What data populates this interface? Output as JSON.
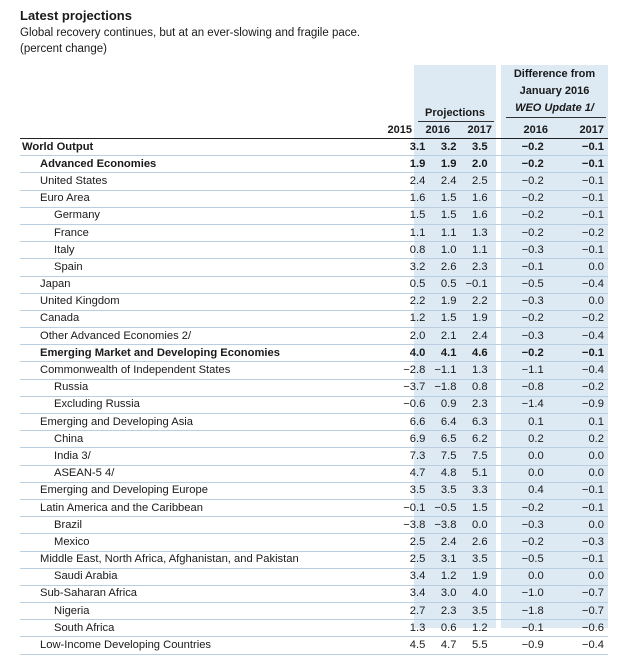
{
  "title": "Latest projections",
  "subtitle": "Global recovery continues, but at an ever-slowing and fragile pace.",
  "unit_note": "(percent change)",
  "header": {
    "difference_line1": "Difference from",
    "difference_line2": "January 2016",
    "difference_line3": "WEO Update 1/",
    "projections": "Projections",
    "years": [
      "2015",
      "2016",
      "2017",
      "2016",
      "2017"
    ]
  },
  "colors": {
    "shade": "#dde9f3",
    "row_rule": "#b9cfe1"
  },
  "rows": [
    {
      "label": "World Output",
      "indent": 0,
      "bold": true,
      "v": [
        "3.1",
        "3.2",
        "3.5",
        "−0.2",
        "−0.1"
      ]
    },
    {
      "label": "Advanced Economies",
      "indent": 1,
      "bold": true,
      "v": [
        "1.9",
        "1.9",
        "2.0",
        "−0.2",
        "−0.1"
      ]
    },
    {
      "label": "United States",
      "indent": 1,
      "bold": false,
      "v": [
        "2.4",
        "2.4",
        "2.5",
        "−0.2",
        "−0.1"
      ]
    },
    {
      "label": "Euro Area",
      "indent": 1,
      "bold": false,
      "v": [
        "1.6",
        "1.5",
        "1.6",
        "−0.2",
        "−0.1"
      ]
    },
    {
      "label": "Germany",
      "indent": 2,
      "bold": false,
      "v": [
        "1.5",
        "1.5",
        "1.6",
        "−0.2",
        "−0.1"
      ]
    },
    {
      "label": "France",
      "indent": 2,
      "bold": false,
      "v": [
        "1.1",
        "1.1",
        "1.3",
        "−0.2",
        "−0.2"
      ]
    },
    {
      "label": "Italy",
      "indent": 2,
      "bold": false,
      "v": [
        "0.8",
        "1.0",
        "1.1",
        "−0.3",
        "−0.1"
      ]
    },
    {
      "label": "Spain",
      "indent": 2,
      "bold": false,
      "v": [
        "3.2",
        "2.6",
        "2.3",
        "−0.1",
        "0.0"
      ]
    },
    {
      "label": "Japan",
      "indent": 1,
      "bold": false,
      "v": [
        "0.5",
        "0.5",
        "−0.1",
        "−0.5",
        "−0.4"
      ]
    },
    {
      "label": "United Kingdom",
      "indent": 1,
      "bold": false,
      "v": [
        "2.2",
        "1.9",
        "2.2",
        "−0.3",
        "0.0"
      ]
    },
    {
      "label": "Canada",
      "indent": 1,
      "bold": false,
      "v": [
        "1.2",
        "1.5",
        "1.9",
        "−0.2",
        "−0.2"
      ]
    },
    {
      "label": "Other Advanced Economies 2/",
      "indent": 1,
      "bold": false,
      "v": [
        "2.0",
        "2.1",
        "2.4",
        "−0.3",
        "−0.4"
      ]
    },
    {
      "label": "Emerging Market and Developing Economies",
      "indent": 1,
      "bold": true,
      "v": [
        "4.0",
        "4.1",
        "4.6",
        "−0.2",
        "−0.1"
      ]
    },
    {
      "label": "Commonwealth of Independent States",
      "indent": 1,
      "bold": false,
      "v": [
        "−2.8",
        "−1.1",
        "1.3",
        "−1.1",
        "−0.4"
      ]
    },
    {
      "label": "Russia",
      "indent": 2,
      "bold": false,
      "v": [
        "−3.7",
        "−1.8",
        "0.8",
        "−0.8",
        "−0.2"
      ]
    },
    {
      "label": "Excluding Russia",
      "indent": 2,
      "bold": false,
      "v": [
        "−0.6",
        "0.9",
        "2.3",
        "−1.4",
        "−0.9"
      ]
    },
    {
      "label": "Emerging and Developing Asia",
      "indent": 1,
      "bold": false,
      "v": [
        "6.6",
        "6.4",
        "6.3",
        "0.1",
        "0.1"
      ]
    },
    {
      "label": "China",
      "indent": 2,
      "bold": false,
      "v": [
        "6.9",
        "6.5",
        "6.2",
        "0.2",
        "0.2"
      ]
    },
    {
      "label": "India 3/",
      "indent": 2,
      "bold": false,
      "v": [
        "7.3",
        "7.5",
        "7.5",
        "0.0",
        "0.0"
      ]
    },
    {
      "label": "ASEAN-5 4/",
      "indent": 2,
      "bold": false,
      "v": [
        "4.7",
        "4.8",
        "5.1",
        "0.0",
        "0.0"
      ]
    },
    {
      "label": "Emerging and Developing Europe",
      "indent": 1,
      "bold": false,
      "v": [
        "3.5",
        "3.5",
        "3.3",
        "0.4",
        "−0.1"
      ]
    },
    {
      "label": "Latin America and the Caribbean",
      "indent": 1,
      "bold": false,
      "v": [
        "−0.1",
        "−0.5",
        "1.5",
        "−0.2",
        "−0.1"
      ]
    },
    {
      "label": "Brazil",
      "indent": 2,
      "bold": false,
      "v": [
        "−3.8",
        "−3.8",
        "0.0",
        "−0.3",
        "0.0"
      ]
    },
    {
      "label": "Mexico",
      "indent": 2,
      "bold": false,
      "v": [
        "2.5",
        "2.4",
        "2.6",
        "−0.2",
        "−0.3"
      ]
    },
    {
      "label": "Middle East, North Africa, Afghanistan, and Pakistan",
      "indent": 1,
      "bold": false,
      "v": [
        "2.5",
        "3.1",
        "3.5",
        "−0.5",
        "−0.1"
      ]
    },
    {
      "label": "Saudi Arabia",
      "indent": 2,
      "bold": false,
      "v": [
        "3.4",
        "1.2",
        "1.9",
        "0.0",
        "0.0"
      ]
    },
    {
      "label": "Sub-Saharan Africa",
      "indent": 1,
      "bold": false,
      "v": [
        "3.4",
        "3.0",
        "4.0",
        "−1.0",
        "−0.7"
      ]
    },
    {
      "label": "Nigeria",
      "indent": 2,
      "bold": false,
      "v": [
        "2.7",
        "2.3",
        "3.5",
        "−1.8",
        "−0.7"
      ]
    },
    {
      "label": "South Africa",
      "indent": 2,
      "bold": false,
      "v": [
        "1.3",
        "0.6",
        "1.2",
        "−0.1",
        "−0.6"
      ]
    },
    {
      "label": "Low-Income Developing Countries",
      "indent": 1,
      "bold": false,
      "v": [
        "4.5",
        "4.7",
        "5.5",
        "−0.9",
        "−0.4"
      ]
    }
  ]
}
